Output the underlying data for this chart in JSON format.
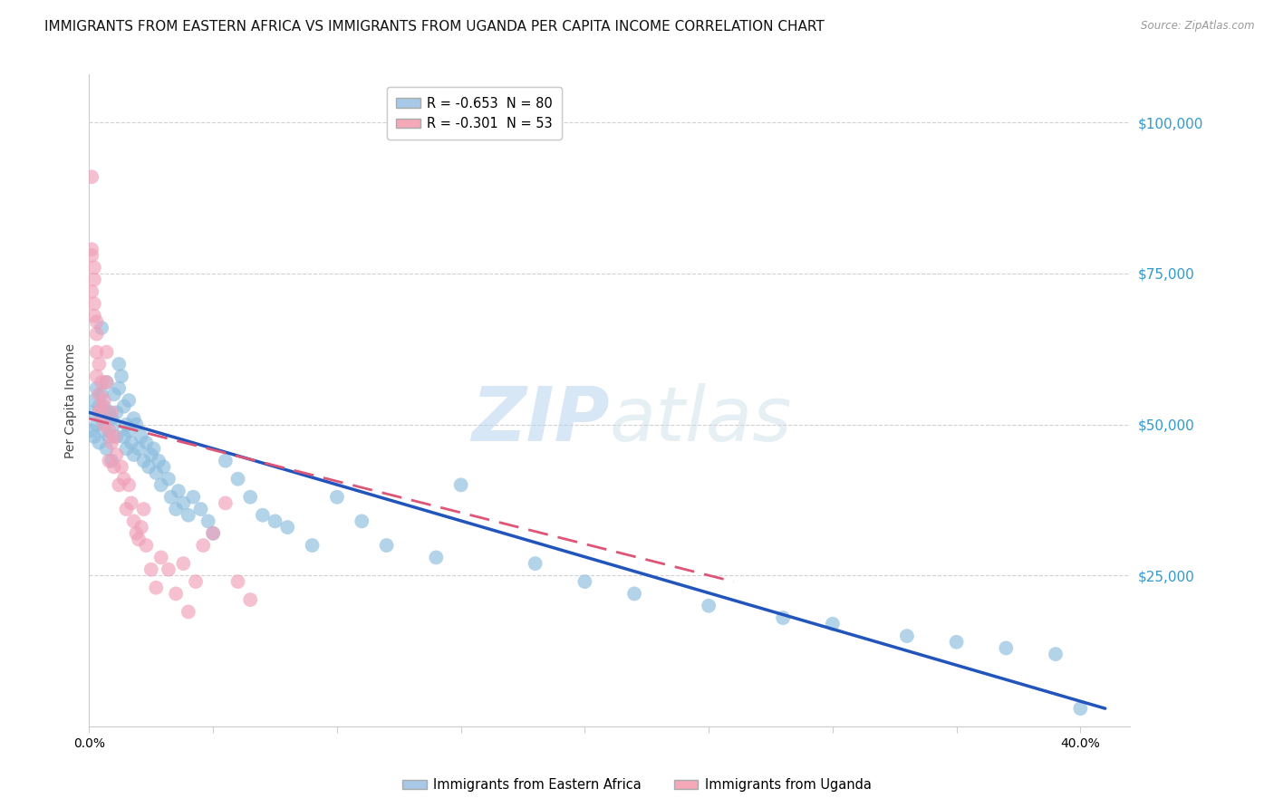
{
  "title": "IMMIGRANTS FROM EASTERN AFRICA VS IMMIGRANTS FROM UGANDA PER CAPITA INCOME CORRELATION CHART",
  "source": "Source: ZipAtlas.com",
  "ylabel": "Per Capita Income",
  "yticks": [
    0,
    25000,
    50000,
    75000,
    100000
  ],
  "ytick_labels": [
    "",
    "$25,000",
    "$50,000",
    "$75,000",
    "$100,000"
  ],
  "xlim": [
    0.0,
    0.42
  ],
  "ylim": [
    0,
    108000
  ],
  "watermark_zip": "ZIP",
  "watermark_atlas": "atlas",
  "legend_entries": [
    {
      "label": "R = -0.653  N = 80",
      "color": "#a8c8e8"
    },
    {
      "label": "R = -0.301  N = 53",
      "color": "#f4a8b8"
    }
  ],
  "legend_bottom": [
    {
      "label": "Immigrants from Eastern Africa",
      "color": "#a8c8e8"
    },
    {
      "label": "Immigrants from Uganda",
      "color": "#f4a8b8"
    }
  ],
  "blue_scatter_x": [
    0.001,
    0.001,
    0.002,
    0.002,
    0.003,
    0.003,
    0.004,
    0.004,
    0.005,
    0.005,
    0.006,
    0.006,
    0.007,
    0.007,
    0.008,
    0.008,
    0.009,
    0.009,
    0.01,
    0.01,
    0.011,
    0.011,
    0.012,
    0.012,
    0.013,
    0.014,
    0.014,
    0.015,
    0.015,
    0.016,
    0.016,
    0.017,
    0.018,
    0.018,
    0.019,
    0.02,
    0.021,
    0.022,
    0.023,
    0.024,
    0.025,
    0.026,
    0.027,
    0.028,
    0.029,
    0.03,
    0.032,
    0.033,
    0.035,
    0.036,
    0.038,
    0.04,
    0.042,
    0.045,
    0.048,
    0.05,
    0.055,
    0.06,
    0.065,
    0.07,
    0.075,
    0.08,
    0.09,
    0.1,
    0.11,
    0.12,
    0.14,
    0.15,
    0.18,
    0.2,
    0.22,
    0.25,
    0.28,
    0.3,
    0.33,
    0.35,
    0.37,
    0.39,
    0.4,
    0.005
  ],
  "blue_scatter_y": [
    52000,
    49000,
    54000,
    48000,
    56000,
    50000,
    53000,
    47000,
    55000,
    51000,
    49000,
    53000,
    57000,
    46000,
    52000,
    48000,
    51000,
    44000,
    50000,
    55000,
    48000,
    52000,
    60000,
    56000,
    58000,
    53000,
    48000,
    50000,
    46000,
    54000,
    49000,
    47000,
    51000,
    45000,
    50000,
    46000,
    48000,
    44000,
    47000,
    43000,
    45000,
    46000,
    42000,
    44000,
    40000,
    43000,
    41000,
    38000,
    36000,
    39000,
    37000,
    35000,
    38000,
    36000,
    34000,
    32000,
    44000,
    41000,
    38000,
    35000,
    34000,
    33000,
    30000,
    38000,
    34000,
    30000,
    28000,
    40000,
    27000,
    24000,
    22000,
    20000,
    18000,
    17000,
    15000,
    14000,
    13000,
    12000,
    3000,
    66000
  ],
  "pink_scatter_x": [
    0.001,
    0.001,
    0.001,
    0.002,
    0.002,
    0.003,
    0.003,
    0.003,
    0.004,
    0.004,
    0.005,
    0.005,
    0.006,
    0.006,
    0.007,
    0.007,
    0.008,
    0.008,
    0.009,
    0.009,
    0.01,
    0.01,
    0.011,
    0.012,
    0.013,
    0.014,
    0.015,
    0.016,
    0.017,
    0.018,
    0.019,
    0.02,
    0.021,
    0.022,
    0.023,
    0.025,
    0.027,
    0.029,
    0.032,
    0.035,
    0.038,
    0.04,
    0.043,
    0.046,
    0.05,
    0.055,
    0.06,
    0.065,
    0.001,
    0.002,
    0.002,
    0.003,
    0.004
  ],
  "pink_scatter_y": [
    91000,
    78000,
    72000,
    76000,
    70000,
    65000,
    62000,
    58000,
    55000,
    52000,
    57000,
    53000,
    54000,
    50000,
    62000,
    57000,
    49000,
    44000,
    52000,
    47000,
    48000,
    43000,
    45000,
    40000,
    43000,
    41000,
    36000,
    40000,
    37000,
    34000,
    32000,
    31000,
    33000,
    36000,
    30000,
    26000,
    23000,
    28000,
    26000,
    22000,
    27000,
    19000,
    24000,
    30000,
    32000,
    37000,
    24000,
    21000,
    79000,
    74000,
    68000,
    67000,
    60000
  ],
  "blue_line_x": [
    0.0,
    0.41
  ],
  "blue_line_y": [
    52000,
    3000
  ],
  "pink_line_x": [
    0.0,
    0.26
  ],
  "pink_line_y": [
    51000,
    24000
  ],
  "background_color": "#ffffff",
  "grid_color": "#cccccc",
  "blue_color": "#8bbcde",
  "pink_color": "#f0a0b8",
  "blue_line_color": "#2255bb",
  "pink_line_color": "#dd5577",
  "title_fontsize": 11,
  "axis_label_fontsize": 10,
  "tick_fontsize": 10
}
